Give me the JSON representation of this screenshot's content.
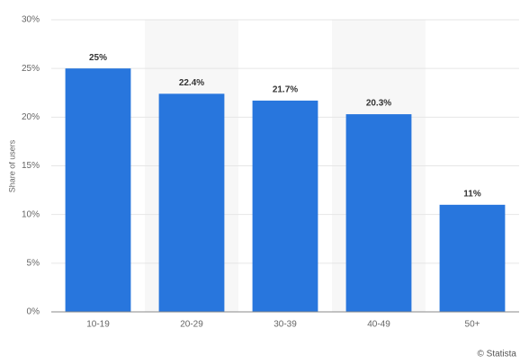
{
  "chart_data": {
    "type": "bar",
    "y_label": "Share of users",
    "categories": [
      "10-19",
      "20-29",
      "30-39",
      "40-49",
      "50+"
    ],
    "values": [
      25,
      22.4,
      21.7,
      20.3,
      11
    ],
    "value_labels": [
      "25%",
      "22.4%",
      "21.7%",
      "20.3%",
      "11%"
    ],
    "color": "#2876dd",
    "ylim": [
      0,
      30
    ],
    "yticks": [
      {
        "value": 0,
        "label": "0%"
      },
      {
        "value": 5,
        "label": "5%"
      },
      {
        "value": 10,
        "label": "10%"
      },
      {
        "value": 15,
        "label": "15%"
      },
      {
        "value": 20,
        "label": "20%"
      },
      {
        "value": 25,
        "label": "25%"
      },
      {
        "value": 30,
        "label": "30%"
      }
    ],
    "grid": true,
    "credit": "© Statista"
  }
}
